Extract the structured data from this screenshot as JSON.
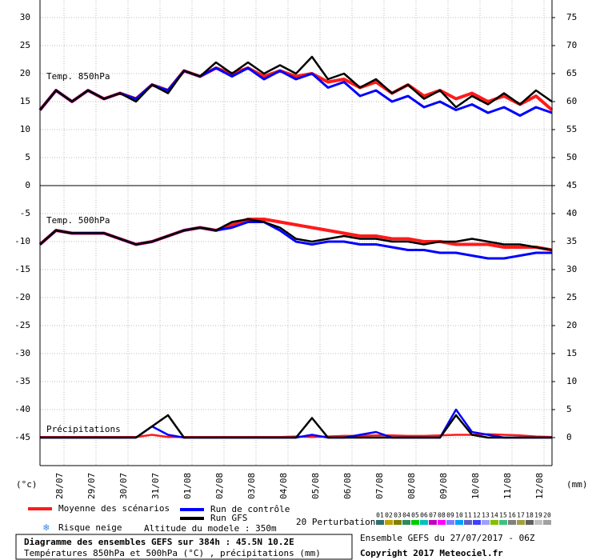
{
  "chart_data": [
    {
      "type": "line",
      "title": "Temp. 850hPa",
      "x": [
        0,
        12,
        24,
        36,
        48,
        60,
        72,
        84,
        96,
        108,
        120,
        132,
        144,
        156,
        168,
        180,
        192,
        204,
        216,
        228,
        240,
        252,
        264,
        276,
        288,
        300,
        312,
        324,
        336,
        348,
        360,
        372,
        384
      ],
      "xlim": [
        0,
        384
      ],
      "ylim": [
        0,
        33
      ],
      "yticks": [
        0,
        5,
        10,
        15,
        20,
        25,
        30
      ],
      "y2lim": [
        45,
        78
      ],
      "y2ticks": [
        50,
        55,
        60,
        65,
        70,
        75
      ],
      "grid": true,
      "series": [
        {
          "name": "Moyenne des scénarios",
          "color": "#ff1a1a",
          "values": [
            13.5,
            17,
            15,
            17,
            15.5,
            16.5,
            15.5,
            18,
            17,
            20.5,
            19.5,
            21,
            20,
            21,
            19.5,
            20.5,
            19.5,
            20,
            18.5,
            19,
            17.5,
            18.5,
            16.5,
            18,
            16,
            17,
            15.5,
            16.5,
            15,
            16,
            14.5,
            16,
            13.5
          ]
        },
        {
          "name": "Run de contrôle",
          "color": "#0000ff",
          "values": [
            13.5,
            17,
            15,
            17,
            15.5,
            16.5,
            15.5,
            18,
            17,
            20.5,
            19.5,
            21,
            19.5,
            21,
            19,
            20.5,
            19,
            20,
            17.5,
            18.5,
            16,
            17,
            15,
            16,
            14,
            15,
            13.5,
            14.5,
            13,
            14,
            12.5,
            14,
            13
          ]
        },
        {
          "name": "Run GFS",
          "color": "#000000",
          "values": [
            13.5,
            17,
            15,
            17,
            15.5,
            16.5,
            15,
            18,
            16.5,
            20.5,
            19.5,
            22,
            20,
            22,
            20,
            21.5,
            20,
            23,
            19,
            20,
            17.5,
            19,
            16.5,
            18,
            15.5,
            17,
            14,
            16,
            14.5,
            16.5,
            14.5,
            17,
            15
          ]
        }
      ]
    },
    {
      "type": "line",
      "title": "Temp. 500hPa",
      "precip_label": "Précipitations",
      "y_unit_label": "(°c)",
      "y2_unit_label": "(mm)",
      "x": [
        0,
        12,
        24,
        36,
        48,
        60,
        72,
        84,
        96,
        108,
        120,
        132,
        144,
        156,
        168,
        180,
        192,
        204,
        216,
        228,
        240,
        252,
        264,
        276,
        288,
        300,
        312,
        324,
        336,
        348,
        360,
        372,
        384
      ],
      "xlim": [
        0,
        384
      ],
      "xticks": [
        {
          "value": 18,
          "label": "28/07"
        },
        {
          "value": 42,
          "label": "29/07"
        },
        {
          "value": 66,
          "label": "30/07"
        },
        {
          "value": 90,
          "label": "31/07"
        },
        {
          "value": 114,
          "label": "01/08"
        },
        {
          "value": 138,
          "label": "02/08"
        },
        {
          "value": 162,
          "label": "03/08"
        },
        {
          "value": 186,
          "label": "04/08"
        },
        {
          "value": 210,
          "label": "05/08"
        },
        {
          "value": 234,
          "label": "06/08"
        },
        {
          "value": 258,
          "label": "07/08"
        },
        {
          "value": 282,
          "label": "08/08"
        },
        {
          "value": 306,
          "label": "09/08"
        },
        {
          "value": 330,
          "label": "10/08"
        },
        {
          "value": 354,
          "label": "11/08"
        },
        {
          "value": 378,
          "label": "12/08"
        }
      ],
      "ylim": [
        -50,
        0
      ],
      "yticks": [
        -5,
        -10,
        -15,
        -20,
        -25,
        -30,
        -35,
        -40,
        -45
      ],
      "y2lim": [
        -5,
        45
      ],
      "y2ticks": [
        0,
        5,
        10,
        15,
        20,
        25,
        30,
        35,
        40,
        45
      ],
      "grid": true,
      "series": [
        {
          "name": "Moyenne des scénarios",
          "color": "#ff1a1a",
          "values": [
            -10.5,
            -8,
            -8.5,
            -8.5,
            -8.5,
            -9.5,
            -10.5,
            -10,
            -9,
            -8,
            -7.5,
            -8,
            -7,
            -6,
            -6,
            -6.5,
            -7,
            -7.5,
            -8,
            -8.5,
            -9,
            -9,
            -9.5,
            -9.5,
            -10,
            -10,
            -10.5,
            -10.5,
            -10.5,
            -11,
            -11,
            -11,
            -11.5
          ]
        },
        {
          "name": "Run de contrôle",
          "color": "#0000ff",
          "values": [
            -10.5,
            -8,
            -8.5,
            -8.5,
            -8.5,
            -9.5,
            -10.5,
            -10,
            -9,
            -8,
            -7.5,
            -8,
            -7.5,
            -6.5,
            -6.5,
            -8,
            -10,
            -10.5,
            -10,
            -10,
            -10.5,
            -10.5,
            -11,
            -11.5,
            -11.5,
            -12,
            -12,
            -12.5,
            -13,
            -13,
            -12.5,
            -12,
            -12
          ]
        },
        {
          "name": "Run GFS",
          "color": "#000000",
          "values": [
            -10.5,
            -8,
            -8.5,
            -8.5,
            -8.5,
            -9.5,
            -10.5,
            -10,
            -9,
            -8,
            -7.5,
            -8,
            -6.5,
            -6,
            -6.5,
            -7.5,
            -9.5,
            -10,
            -9.5,
            -9,
            -9.5,
            -9.5,
            -10,
            -10,
            -10.5,
            -10,
            -10,
            -9.5,
            -10,
            -10.5,
            -10.5,
            -11,
            -11.5
          ]
        },
        {
          "name": "Moyenne des scénarios",
          "color": "#ff1a1a",
          "axis": "y2",
          "values": [
            0.1,
            0.1,
            0.1,
            0.1,
            0.1,
            0.1,
            0.1,
            0.5,
            0.1,
            0.1,
            0.1,
            0.1,
            0.1,
            0.1,
            0.1,
            0.1,
            0.2,
            0.1,
            0.2,
            0.3,
            0.3,
            0.4,
            0.4,
            0.3,
            0.3,
            0.4,
            0.5,
            0.5,
            0.6,
            0.5,
            0.4,
            0.2,
            0.1
          ]
        },
        {
          "name": "Run de contrôle",
          "color": "#0000ff",
          "axis": "y2",
          "values": [
            0,
            0,
            0,
            0,
            0,
            0,
            0,
            2,
            0.5,
            0,
            0,
            0,
            0,
            0,
            0,
            0,
            0,
            0.5,
            0,
            0,
            0.5,
            1,
            0,
            0,
            0,
            0,
            5,
            1,
            0.5,
            0,
            0,
            0,
            0
          ]
        },
        {
          "name": "Run GFS",
          "color": "#000000",
          "axis": "y2",
          "values": [
            0,
            0,
            0,
            0,
            0,
            0,
            0,
            2,
            4,
            0,
            0,
            0,
            0,
            0,
            0,
            0,
            0,
            3.5,
            0,
            0,
            0,
            0,
            0,
            0,
            0,
            0,
            4,
            0.5,
            0,
            0,
            0,
            0,
            0
          ]
        }
      ]
    }
  ],
  "legend": {
    "snow": "Risque neige",
    "altitude": "Altitude du modele : 350m",
    "perturbations": "20 Perturbations",
    "members": [
      {
        "name": "01",
        "color": "#2f6f6f"
      },
      {
        "name": "02",
        "color": "#c0a000"
      },
      {
        "name": "03",
        "color": "#808000"
      },
      {
        "name": "04",
        "color": "#2e8b57"
      },
      {
        "name": "05",
        "color": "#00cc00"
      },
      {
        "name": "06",
        "color": "#00c0c0"
      },
      {
        "name": "07",
        "color": "#c000c0"
      },
      {
        "name": "08",
        "color": "#ff00ff"
      },
      {
        "name": "09",
        "color": "#8080ff"
      },
      {
        "name": "10",
        "color": "#00a0ff"
      },
      {
        "name": "11",
        "color": "#6060c0"
      },
      {
        "name": "12",
        "color": "#4040ff"
      },
      {
        "name": "13",
        "color": "#a0a0ff"
      },
      {
        "name": "14",
        "color": "#80c000"
      },
      {
        "name": "15",
        "color": "#40c080"
      },
      {
        "name": "16",
        "color": "#808080"
      },
      {
        "name": "17",
        "color": "#a0a040"
      },
      {
        "name": "18",
        "color": "#606060"
      },
      {
        "name": "19",
        "color": "#c0c0c0"
      },
      {
        "name": "20",
        "color": "#a0a0a0"
      }
    ]
  },
  "footer": {
    "title": "Diagramme des ensembles GEFS sur 384h : 45.5N 10.2E",
    "subtitle": "Températures 850hPa et 500hPa (°C) , précipitations (mm)",
    "run": "Ensemble GEFS du 27/07/2017 - 06Z",
    "copyright": "Copyright 2017 Meteociel.fr"
  }
}
